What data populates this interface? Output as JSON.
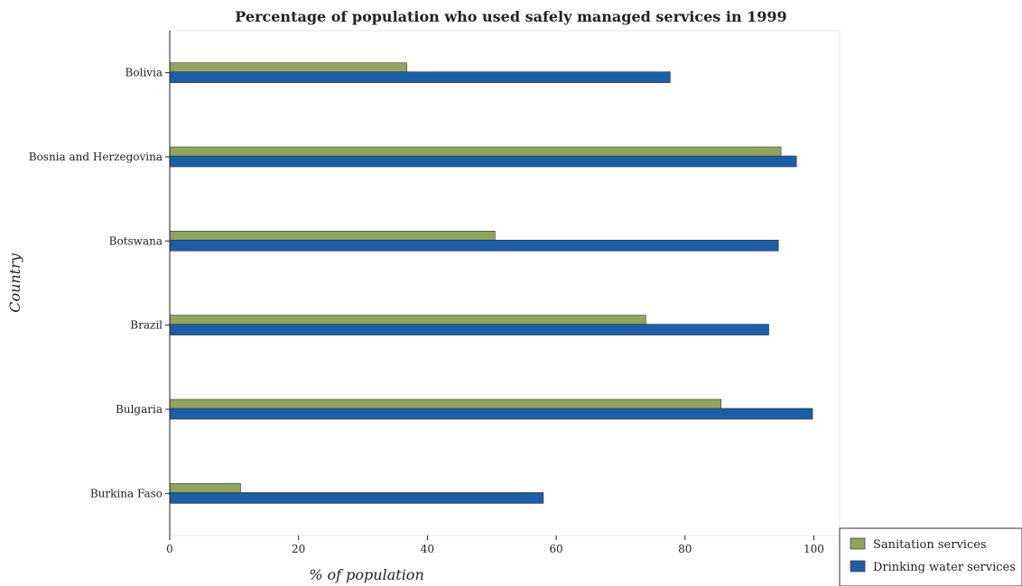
{
  "chart_data": {
    "type": "bar",
    "orientation": "horizontal",
    "title": "Percentage of population who used safely managed services in 1999",
    "xlabel": "% of population",
    "ylabel": "Country",
    "categories": [
      "Bolivia",
      "Bosnia and Herzegovina",
      "Botswana",
      "Brazil",
      "Bulgaria",
      "Burkina Faso"
    ],
    "series": [
      {
        "name": "Sanitation services",
        "color": "#8fa65b",
        "values": [
          36.8,
          94.9,
          50.5,
          73.9,
          85.6,
          11.0
        ]
      },
      {
        "name": "Drinking water services",
        "color": "#1c5fa8",
        "values": [
          77.7,
          97.3,
          94.5,
          93.0,
          99.8,
          58.0
        ]
      }
    ],
    "xlim": [
      0,
      104
    ],
    "xticks": [
      0,
      20,
      40,
      60,
      80,
      100
    ],
    "grid": false,
    "legend_position": "bottom-right"
  }
}
